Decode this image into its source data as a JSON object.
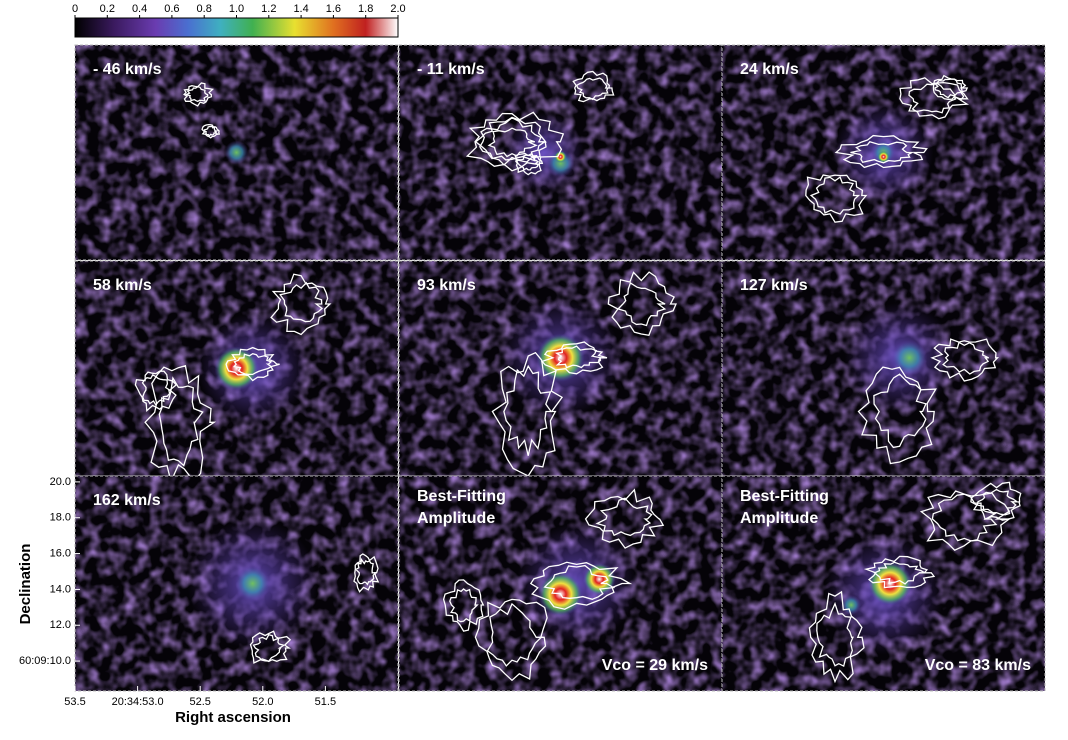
{
  "colorbar": {
    "ticks": [
      0,
      0.2,
      0.4,
      0.6,
      0.8,
      {
        "value": 1,
        "label": "1.0"
      },
      1.2,
      1.4,
      1.6,
      1.8,
      {
        "value": 2,
        "label": "2.0"
      }
    ]
  },
  "panels": [
    {
      "label": "- 46 km/s"
    },
    {
      "label": "- 11 km/s"
    },
    {
      "label": "24 km/s"
    },
    {
      "label": "58 km/s"
    },
    {
      "label": "93 km/s"
    },
    {
      "label": "127 km/s"
    },
    {
      "label": "162 km/s"
    },
    {
      "title": "Best-Fitting Amplitude",
      "note": "Vco = 29 km/s"
    },
    {
      "title": "Best-Fitting Amplitude",
      "note": "Vco = 83 km/s"
    }
  ],
  "axes": {
    "xlabel": "Right ascension",
    "ylabel": "Declination",
    "xlim": [
      53.5,
      50.92
    ],
    "xticks": [
      53.5,
      {
        "value": 53,
        "label": "20:34:53.0"
      },
      52.5,
      {
        "value": 52,
        "label": "52.0"
      },
      51.5
    ],
    "ylim": [
      8.33,
      20.33
    ],
    "yticks": [
      {
        "value": 20,
        "label": "20.0"
      },
      {
        "value": 18,
        "label": "18.0"
      },
      {
        "value": 16,
        "label": "16.0"
      },
      {
        "value": 14,
        "label": "14.0"
      },
      {
        "value": 12,
        "label": "12.0"
      },
      {
        "value": 10,
        "label": "60:09:10.0"
      }
    ]
  }
}
